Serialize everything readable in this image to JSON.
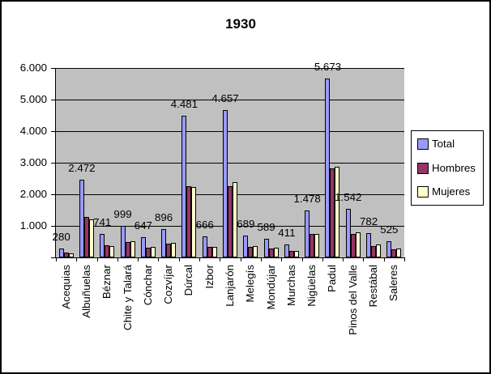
{
  "title": "1930",
  "legend": {
    "items": [
      {
        "label": "Total",
        "color": "#9999FF"
      },
      {
        "label": "Hombres",
        "color": "#993366"
      },
      {
        "label": "Mujeres",
        "color": "#FFFFCC"
      }
    ]
  },
  "chart_data": {
    "type": "bar",
    "title": "1930",
    "categories": [
      "Acequias",
      "Albuñuelas",
      "Béznar",
      "Chite y Talará",
      "Cónchar",
      "Cozvíjar",
      "Dúrcal",
      "Izbor",
      "Lanjarón",
      "Melegís",
      "Mondújar",
      "Murchas",
      "Nigüelas",
      "Padul",
      "Pinos del Valle",
      "Restábal",
      "Saleres"
    ],
    "series": [
      {
        "name": "Total",
        "color": "#9999FF",
        "values": [
          280,
          2472,
          741,
          999,
          647,
          896,
          4481,
          666,
          4657,
          689,
          589,
          411,
          1478,
          5673,
          1542,
          782,
          525
        ]
      },
      {
        "name": "Hombres",
        "color": "#993366",
        "values": [
          145,
          1270,
          380,
          480,
          320,
          435,
          2256,
          330,
          2260,
          325,
          280,
          200,
          735,
          2813,
          740,
          360,
          255
        ]
      },
      {
        "name": "Mujeres",
        "color": "#FFFFCC",
        "values": [
          135,
          1202,
          361,
          519,
          327,
          461,
          2225,
          336,
          2397,
          364,
          309,
          211,
          743,
          2860,
          802,
          422,
          270
        ]
      }
    ],
    "data_labels": [
      "280",
      "2.472",
      "741",
      "999",
      "647",
      "896",
      "4.481",
      "666",
      "4.657",
      "689",
      "589",
      "411",
      "1.478",
      "5.673",
      "1.542",
      "782",
      "525"
    ],
    "data_labels_on_series": "Total",
    "ylim": [
      0,
      6000
    ],
    "ytick_interval": 1000,
    "ytick_labels": [
      "6.000",
      "5.000",
      "4.000",
      "3.000",
      "2.000",
      "1.000"
    ],
    "grid": true,
    "plot_background": "#C0C0C0",
    "legend_position": "right"
  }
}
